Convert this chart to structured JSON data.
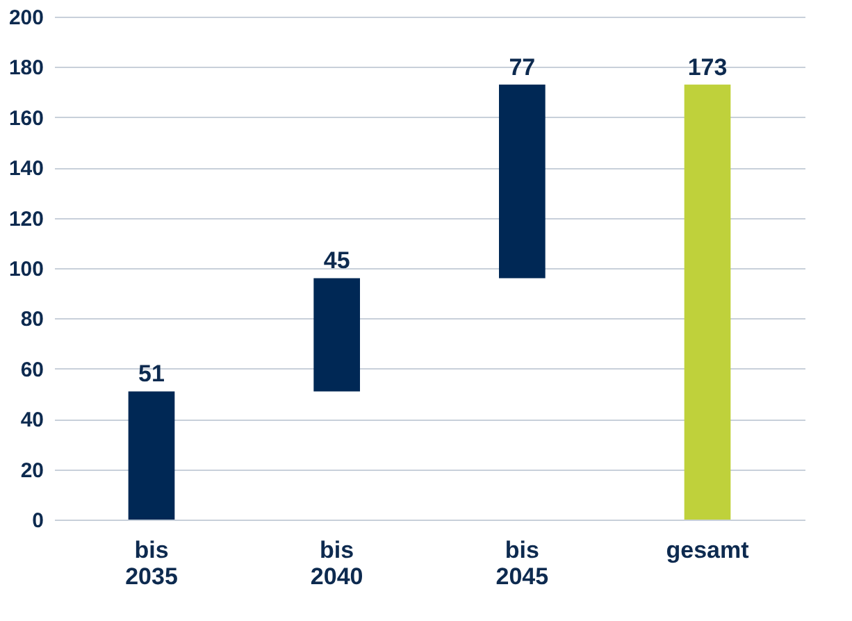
{
  "chart_data": {
    "type": "bar",
    "categories": [
      "bis 2035",
      "bis 2040",
      "bis 2045",
      "gesamt"
    ],
    "values": [
      51,
      45,
      77,
      173
    ],
    "base": [
      0,
      51,
      96,
      0
    ],
    "colors": [
      "#002855",
      "#002855",
      "#002855",
      "#bfd13b"
    ],
    "ylim": [
      0,
      200
    ],
    "yticks": [
      0,
      20,
      40,
      60,
      80,
      100,
      120,
      140,
      160,
      180,
      200
    ],
    "grid": "y",
    "data_labels": true
  }
}
